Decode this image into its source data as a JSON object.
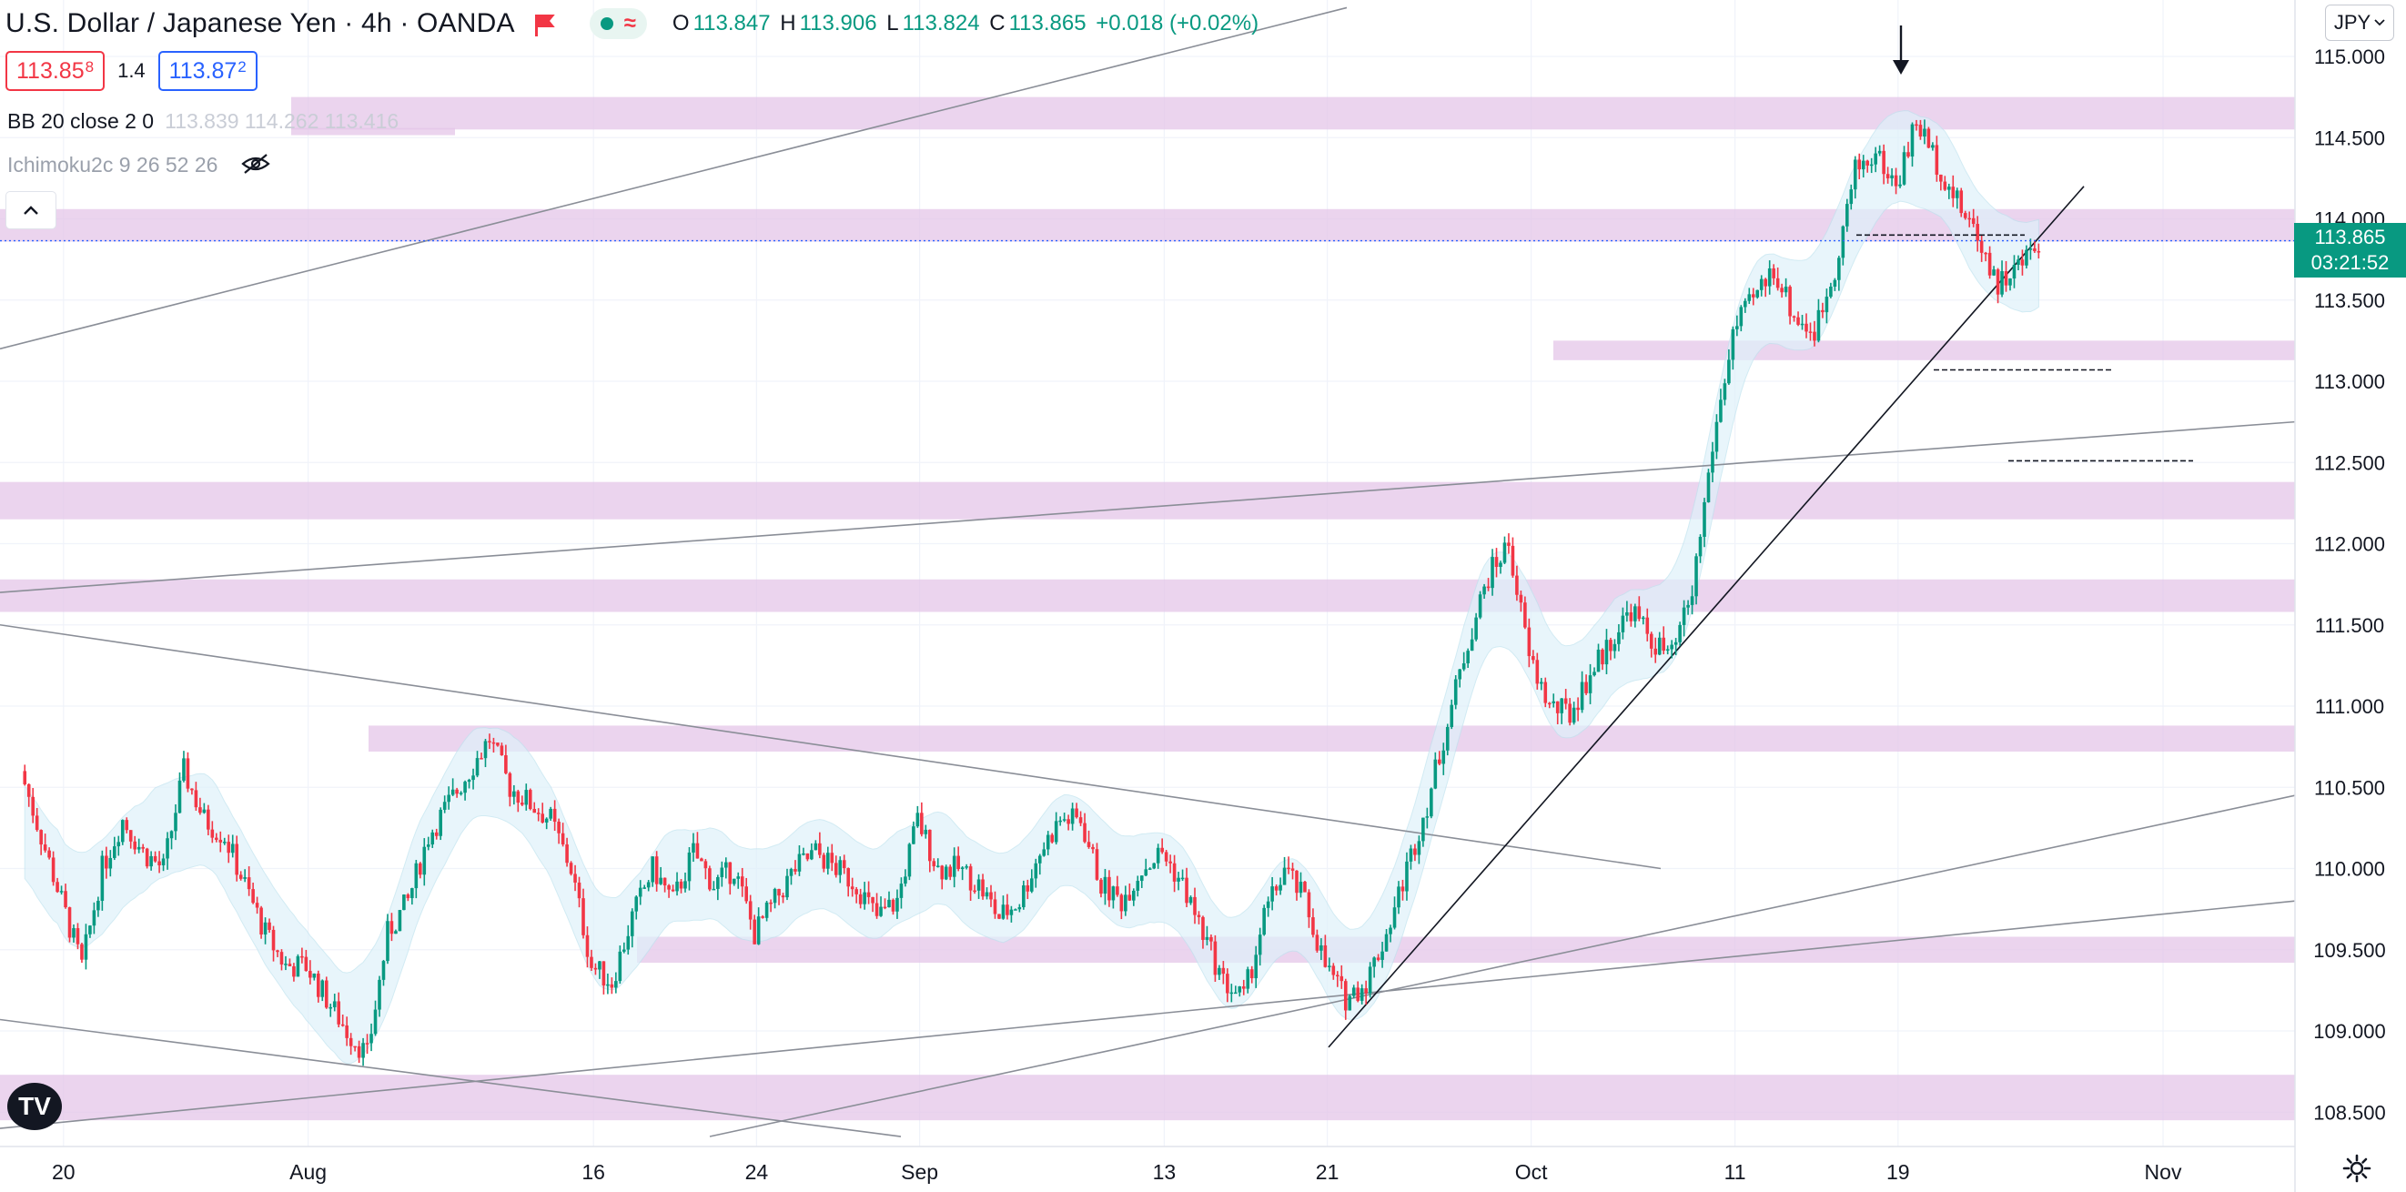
{
  "header": {
    "title": "U.S. Dollar / Japanese Yen · 4h · OANDA",
    "ohlc": {
      "o_label": "O",
      "o": "113.847",
      "h_label": "H",
      "h": "113.906",
      "l_label": "L",
      "l": "113.824",
      "c_label": "C",
      "c": "113.865",
      "change": "+0.018 (+0.02%)"
    },
    "status_icons": [
      "market-open-dot-icon",
      "wave-icon"
    ]
  },
  "quotes": {
    "sell_main": "113.85",
    "sell_sup": "8",
    "spread": "1.4",
    "buy_main": "113.87",
    "buy_sup": "2"
  },
  "indicators": {
    "bb_label": "BB 20 close 2 0",
    "bb_values": "113.839  114.262  113.416",
    "ichimoku_label": "Ichimoku2c 9 26 52 26"
  },
  "currency_selector": "JPY",
  "price_badge": {
    "price": "113.865",
    "countdown": "03:21:52"
  },
  "logo_text": "TV",
  "colors": {
    "up": "#089981",
    "down": "#f23645",
    "zone": "#e4c6e8",
    "cloud": "#dff1fa",
    "grid": "#f0f3fa",
    "line": "#8a8e97",
    "badge": "#089981"
  },
  "chart_data": {
    "type": "candlestick",
    "ylim": [
      108.3,
      115.3
    ],
    "y_ticks": [
      "115.000",
      "114.500",
      "114.000",
      "113.500",
      "113.000",
      "112.500",
      "112.000",
      "111.500",
      "111.000",
      "110.500",
      "110.000",
      "109.500",
      "109.000",
      "108.500"
    ],
    "x_ticks": [
      {
        "label": "20",
        "day": 2
      },
      {
        "label": "Aug",
        "day": 14
      },
      {
        "label": "16",
        "day": 28
      },
      {
        "label": "24",
        "day": 36
      },
      {
        "label": "Sep",
        "day": 44
      },
      {
        "label": "13",
        "day": 56
      },
      {
        "label": "21",
        "day": 64
      },
      {
        "label": "Oct",
        "day": 74
      },
      {
        "label": "11",
        "day": 84
      },
      {
        "label": "19",
        "day": 92
      },
      {
        "label": "Nov",
        "day": 105
      }
    ],
    "series": [
      {
        "day": 0,
        "close": 110.6
      },
      {
        "day": 1,
        "close": 110.2
      },
      {
        "day": 2,
        "close": 109.8
      },
      {
        "day": 3,
        "close": 109.4
      },
      {
        "day": 4,
        "close": 110.0
      },
      {
        "day": 5,
        "close": 110.3
      },
      {
        "day": 6,
        "close": 110.1
      },
      {
        "day": 7,
        "close": 110.0
      },
      {
        "day": 8,
        "close": 110.6
      },
      {
        "day": 9,
        "close": 110.3
      },
      {
        "day": 10,
        "close": 110.2
      },
      {
        "day": 11,
        "close": 109.9
      },
      {
        "day": 12,
        "close": 109.6
      },
      {
        "day": 13,
        "close": 109.4
      },
      {
        "day": 14,
        "close": 109.4
      },
      {
        "day": 15,
        "close": 109.2
      },
      {
        "day": 16,
        "close": 109.0
      },
      {
        "day": 17,
        "close": 108.85
      },
      {
        "day": 18,
        "close": 109.6
      },
      {
        "day": 19,
        "close": 109.8
      },
      {
        "day": 20,
        "close": 110.2
      },
      {
        "day": 21,
        "close": 110.4
      },
      {
        "day": 22,
        "close": 110.6
      },
      {
        "day": 23,
        "close": 110.8
      },
      {
        "day": 24,
        "close": 110.5
      },
      {
        "day": 25,
        "close": 110.4
      },
      {
        "day": 26,
        "close": 110.3
      },
      {
        "day": 27,
        "close": 110.0
      },
      {
        "day": 28,
        "close": 109.4
      },
      {
        "day": 29,
        "close": 109.3
      },
      {
        "day": 30,
        "close": 109.7
      },
      {
        "day": 31,
        "close": 110.0
      },
      {
        "day": 32,
        "close": 109.8
      },
      {
        "day": 33,
        "close": 110.1
      },
      {
        "day": 34,
        "close": 109.9
      },
      {
        "day": 35,
        "close": 110.0
      },
      {
        "day": 36,
        "close": 109.6
      },
      {
        "day": 37,
        "close": 109.8
      },
      {
        "day": 38,
        "close": 110.0
      },
      {
        "day": 39,
        "close": 110.1
      },
      {
        "day": 40,
        "close": 110.0
      },
      {
        "day": 41,
        "close": 109.9
      },
      {
        "day": 42,
        "close": 109.7
      },
      {
        "day": 43,
        "close": 109.8
      },
      {
        "day": 44,
        "close": 110.3
      },
      {
        "day": 45,
        "close": 110.0
      },
      {
        "day": 46,
        "close": 110.0
      },
      {
        "day": 47,
        "close": 109.9
      },
      {
        "day": 48,
        "close": 109.7
      },
      {
        "day": 49,
        "close": 109.8
      },
      {
        "day": 50,
        "close": 110.1
      },
      {
        "day": 51,
        "close": 110.3
      },
      {
        "day": 52,
        "close": 110.3
      },
      {
        "day": 53,
        "close": 109.9
      },
      {
        "day": 54,
        "close": 109.8
      },
      {
        "day": 55,
        "close": 110.0
      },
      {
        "day": 56,
        "close": 110.1
      },
      {
        "day": 57,
        "close": 109.9
      },
      {
        "day": 58,
        "close": 109.6
      },
      {
        "day": 59,
        "close": 109.3
      },
      {
        "day": 60,
        "close": 109.2
      },
      {
        "day": 61,
        "close": 109.7
      },
      {
        "day": 62,
        "close": 110.0
      },
      {
        "day": 63,
        "close": 109.8
      },
      {
        "day": 64,
        "close": 109.4
      },
      {
        "day": 65,
        "close": 109.2
      },
      {
        "day": 66,
        "close": 109.3
      },
      {
        "day": 67,
        "close": 109.6
      },
      {
        "day": 68,
        "close": 110.0
      },
      {
        "day": 69,
        "close": 110.4
      },
      {
        "day": 70,
        "close": 110.9
      },
      {
        "day": 71,
        "close": 111.4
      },
      {
        "day": 72,
        "close": 111.8
      },
      {
        "day": 73,
        "close": 112.0
      },
      {
        "day": 74,
        "close": 111.3
      },
      {
        "day": 75,
        "close": 111.0
      },
      {
        "day": 76,
        "close": 110.95
      },
      {
        "day": 77,
        "close": 111.2
      },
      {
        "day": 78,
        "close": 111.4
      },
      {
        "day": 79,
        "close": 111.6
      },
      {
        "day": 80,
        "close": 111.4
      },
      {
        "day": 81,
        "close": 111.3
      },
      {
        "day": 82,
        "close": 111.7
      },
      {
        "day": 83,
        "close": 112.6
      },
      {
        "day": 84,
        "close": 113.3
      },
      {
        "day": 85,
        "close": 113.5
      },
      {
        "day": 86,
        "close": 113.7
      },
      {
        "day": 87,
        "close": 113.4
      },
      {
        "day": 88,
        "close": 113.3
      },
      {
        "day": 89,
        "close": 113.7
      },
      {
        "day": 90,
        "close": 114.3
      },
      {
        "day": 91,
        "close": 114.4
      },
      {
        "day": 92,
        "close": 114.2
      },
      {
        "day": 93,
        "close": 114.6
      },
      {
        "day": 94,
        "close": 114.35
      },
      {
        "day": 95,
        "close": 114.1
      },
      {
        "day": 96,
        "close": 113.9
      },
      {
        "day": 97,
        "close": 113.6
      },
      {
        "day": 98,
        "close": 113.7
      },
      {
        "day": 99,
        "close": 113.865
      }
    ]
  }
}
